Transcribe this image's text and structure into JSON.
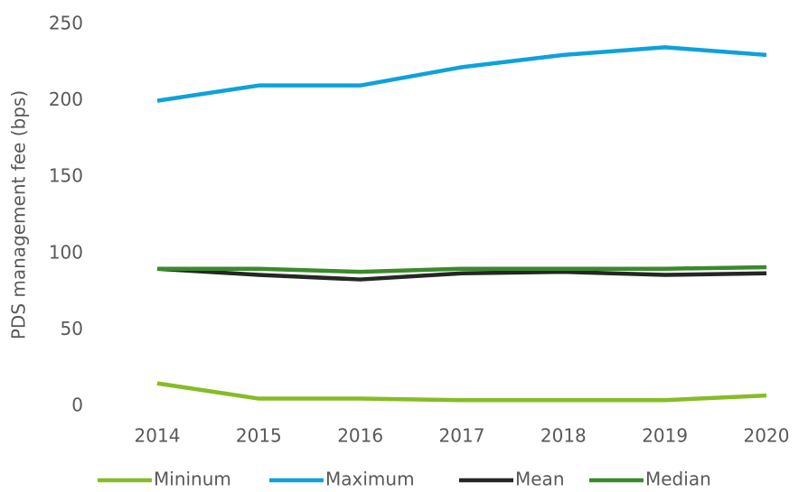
{
  "chart_data": {
    "type": "line",
    "y_label": "PDS management fee (bps)",
    "categories": [
      "2014",
      "2015",
      "2016",
      "2017",
      "2018",
      "2019",
      "2020"
    ],
    "series": [
      {
        "name": "Mininum",
        "color": "#86bc25",
        "values": [
          15,
          5,
          5,
          4,
          4,
          4,
          7
        ]
      },
      {
        "name": "Maximum",
        "color": "#0ea1dc",
        "values": [
          200,
          210,
          210,
          222,
          230,
          235,
          230
        ]
      },
      {
        "name": "Mean",
        "color": "#262626",
        "values": [
          90,
          86,
          83,
          87,
          88,
          86,
          87
        ]
      },
      {
        "name": "Median",
        "color": "#3a8a2a",
        "values": [
          90,
          90,
          88,
          90,
          90,
          90,
          91
        ]
      }
    ],
    "ylim": [
      0,
      250
    ],
    "yticks": [
      0,
      50,
      100,
      150,
      200,
      250
    ],
    "grid": false,
    "legend": "bottom"
  }
}
